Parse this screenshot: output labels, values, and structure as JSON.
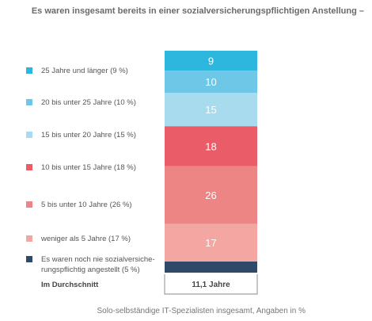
{
  "chart_data": {
    "type": "bar",
    "stacked": true,
    "title": "Es waren insgesamt bereits in einer sozialversicherungspflichtigen Anstellung –",
    "footnote": "Solo-selbständige IT-Spezialisten insgesamt, Angaben in %",
    "series": [
      {
        "name": "Es waren noch nie sozialversicherungspflichtig angestellt (5 %)",
        "label_lines": [
          "Es waren noch nie sozialversiche-",
          "rungspflichtig angestellt (5 %)"
        ],
        "value": 5,
        "color": "#2e4a66",
        "show_value": false
      },
      {
        "name": "weniger als 5 Jahre (17 %)",
        "label_lines": [
          "weniger als 5 Jahre (17 %)"
        ],
        "value": 17,
        "color": "#f4a7a2",
        "show_value": true
      },
      {
        "name": "5 bis unter 10 Jahre (26 %)",
        "label_lines": [
          " 5 bis unter 10 Jahre (26 %)"
        ],
        "value": 26,
        "color": "#ee8585",
        "show_value": true
      },
      {
        "name": "10 bis unter 15 Jahre (18 %)",
        "label_lines": [
          "10 bis unter 15 Jahre (18 %)"
        ],
        "value": 18,
        "color": "#e95c68",
        "show_value": true
      },
      {
        "name": "15 bis unter 20 Jahre (15 %)",
        "label_lines": [
          "15 bis unter 20 Jahre (15 %)"
        ],
        "value": 15,
        "color": "#a8dbee",
        "show_value": true
      },
      {
        "name": "20 bis unter 25 Jahre (10 %)",
        "label_lines": [
          "20 bis unter 25 Jahre (10 %)"
        ],
        "value": 10,
        "color": "#6ec7e6",
        "show_value": true
      },
      {
        "name": "25 Jahre und länger (9 %)",
        "label_lines": [
          "25 Jahre und länger (9 %)"
        ],
        "value": 9,
        "color": "#2eb7de",
        "show_value": true
      }
    ],
    "average": {
      "label": "Im Durchschnitt",
      "value": "11,1 Jahre"
    },
    "legend_position": "left",
    "grid": false
  }
}
